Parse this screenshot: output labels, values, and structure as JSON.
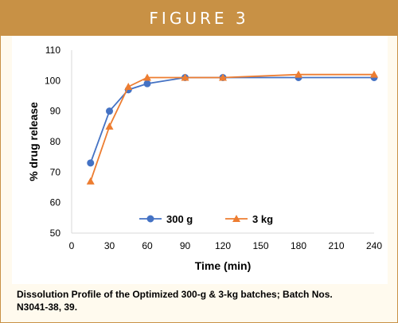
{
  "header": {
    "label": "FIGURE 3"
  },
  "caption": "Dissolution Profile of the Optimized 300-g & 3-kg batches; Batch Nos. N3041-38, 39.",
  "colors": {
    "frame": "#c89145",
    "series_300g": "#4472c4",
    "series_3kg": "#ed7d31"
  },
  "chart_data": {
    "type": "line",
    "xlabel": "Time (min)",
    "ylabel": "% drug release",
    "xlim": [
      0,
      240
    ],
    "ylim": [
      50,
      110
    ],
    "x_ticks": [
      "0",
      "30",
      "60",
      "90",
      "120",
      "150",
      "180",
      "210",
      "240"
    ],
    "y_ticks": [
      "50",
      "60",
      "70",
      "80",
      "90",
      "100",
      "110"
    ],
    "grid": false,
    "legend_placement": "bottom-center",
    "series": [
      {
        "name": "300 g",
        "marker": "circle",
        "color": "#4472c4",
        "x": [
          15,
          30,
          45,
          60,
          90,
          120,
          180,
          240
        ],
        "y": [
          73,
          90,
          97,
          99,
          101,
          101,
          101,
          101
        ]
      },
      {
        "name": "3 kg",
        "marker": "triangle",
        "color": "#ed7d31",
        "x": [
          15,
          30,
          45,
          60,
          90,
          120,
          180,
          240
        ],
        "y": [
          67,
          85,
          98,
          101,
          101,
          101,
          102,
          102
        ]
      }
    ]
  }
}
